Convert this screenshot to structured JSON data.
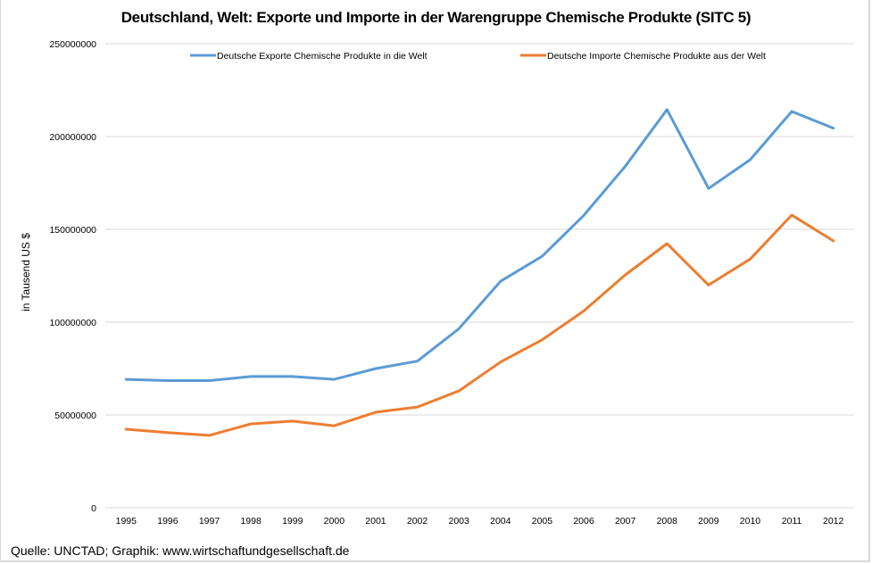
{
  "chart_data": {
    "type": "line",
    "title": "Deutschland, Welt: Exporte und Importe  in der Warengruppe Chemische Produkte (SITC 5)",
    "xlabel": "",
    "ylabel": "in Tausend US $",
    "ylim": [
      0,
      250000000
    ],
    "yticks": [
      0,
      50000000,
      100000000,
      150000000,
      200000000,
      250000000
    ],
    "ytick_labels": [
      "0",
      "50000000",
      "100000000",
      "150000000",
      "200000000",
      "250000000"
    ],
    "grid": true,
    "legend_position": "top",
    "categories": [
      "1995",
      "1996",
      "1997",
      "1998",
      "1999",
      "2000",
      "2001",
      "2002",
      "2003",
      "2004",
      "2005",
      "2006",
      "2007",
      "2008",
      "2009",
      "2010",
      "2011",
      "2012"
    ],
    "series": [
      {
        "name": "Deutsche Exporte Chemische Produkte in die Welt",
        "color": "#5b9bd5",
        "values": [
          69200000,
          68500000,
          68500000,
          70700000,
          70700000,
          69200000,
          75000000,
          79000000,
          96500000,
          122000000,
          135500000,
          157500000,
          184000000,
          214500000,
          172000000,
          187500000,
          213500000,
          204500000
        ]
      },
      {
        "name": "Deutsche Importe Chemische Produkte aus der Welt",
        "color": "#ed7d31",
        "values": [
          42300000,
          40500000,
          39000000,
          45200000,
          46700000,
          44200000,
          51500000,
          54300000,
          63000000,
          78500000,
          90500000,
          106000000,
          125500000,
          142300000,
          120000000,
          134000000,
          157700000,
          143800000
        ]
      }
    ]
  },
  "footer": {
    "source": "Quelle: UNCTAD; Graphik: www.wirtschaftundgesellschaft.de"
  }
}
